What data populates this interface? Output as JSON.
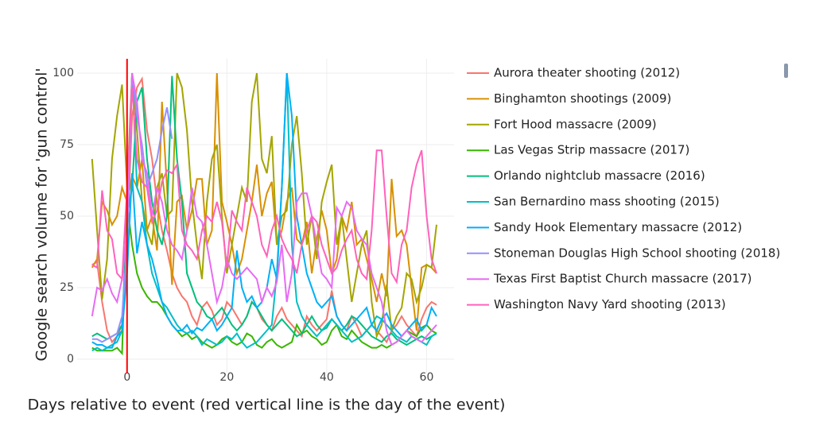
{
  "chart_data": {
    "type": "line",
    "xlabel": "Days relative to event (red vertical line is the day of the event)",
    "ylabel": "Google search volume for 'gun control'",
    "x": [
      -7,
      -6,
      -5,
      -4,
      -3,
      -2,
      -1,
      0,
      1,
      2,
      3,
      4,
      5,
      6,
      7,
      8,
      9,
      10,
      11,
      12,
      13,
      14,
      15,
      16,
      17,
      18,
      19,
      20,
      21,
      22,
      23,
      24,
      25,
      26,
      27,
      28,
      29,
      30,
      31,
      32,
      33,
      34,
      35,
      36,
      37,
      38,
      39,
      40,
      41,
      42,
      43,
      44,
      45,
      46,
      47,
      48,
      49,
      50,
      51,
      52,
      53,
      54,
      55,
      56,
      57,
      58,
      59,
      60,
      61,
      62
    ],
    "xlim": [
      -10,
      65.5
    ],
    "xticks": [
      0,
      20,
      40,
      60
    ],
    "ylim": [
      -5,
      105
    ],
    "yticks": [
      0,
      25,
      50,
      75,
      100
    ],
    "grid": true,
    "vline": {
      "x": 0,
      "color": "#ff0000"
    },
    "series": [
      {
        "name": "Aurora theater shooting (2012)",
        "color": "#f8766d",
        "values": [
          33,
          34,
          20,
          10,
          6,
          8,
          12,
          40,
          85,
          95,
          98,
          80,
          70,
          55,
          45,
          38,
          30,
          25,
          22,
          20,
          15,
          12,
          18,
          20,
          17,
          12,
          14,
          20,
          18,
          15,
          12,
          15,
          20,
          18,
          14,
          12,
          10,
          15,
          18,
          14,
          12,
          10,
          8,
          15,
          12,
          10,
          12,
          14,
          24,
          15,
          12,
          10,
          15,
          12,
          8,
          10,
          12,
          10,
          8,
          6,
          10,
          12,
          15,
          12,
          10,
          8,
          14,
          18,
          20,
          19
        ]
      },
      {
        "name": "Binghamton shootings (2009)",
        "color": "#d89000",
        "values": [
          32,
          35,
          55,
          52,
          47,
          50,
          60,
          55,
          64,
          60,
          70,
          45,
          50,
          38,
          90,
          60,
          26,
          55,
          57,
          45,
          52,
          63,
          63,
          40,
          45,
          100,
          55,
          48,
          40,
          30,
          35,
          45,
          55,
          68,
          50,
          58,
          62,
          40,
          45,
          55,
          60,
          42,
          40,
          48,
          30,
          42,
          52,
          45,
          30,
          35,
          50,
          45,
          55,
          40,
          42,
          35,
          28,
          20,
          30,
          22,
          63,
          43,
          45,
          40,
          25,
          10,
          32,
          33,
          32,
          30
        ]
      },
      {
        "name": "Fort Hood massacre (2009)",
        "color": "#a3a500",
        "values": [
          70,
          45,
          21,
          35,
          70,
          85,
          96,
          60,
          100,
          80,
          55,
          45,
          40,
          60,
          65,
          50,
          52,
          100,
          95,
          80,
          55,
          40,
          28,
          55,
          70,
          75,
          50,
          30,
          40,
          50,
          60,
          55,
          90,
          100,
          70,
          65,
          78,
          40,
          50,
          52,
          75,
          85,
          65,
          40,
          50,
          35,
          55,
          62,
          68,
          40,
          50,
          35,
          20,
          30,
          40,
          45,
          20,
          8,
          12,
          26,
          10,
          15,
          18,
          30,
          28,
          20,
          25,
          33,
          32,
          47
        ]
      },
      {
        "name": "Las Vegas Strip massacre (2017)",
        "color": "#39b600",
        "values": [
          4,
          3,
          3,
          3,
          3,
          4,
          2,
          55,
          40,
          30,
          25,
          22,
          20,
          20,
          18,
          15,
          12,
          10,
          8,
          9,
          7,
          8,
          6,
          5,
          4,
          5,
          7,
          8,
          6,
          5,
          6,
          9,
          8,
          5,
          4,
          6,
          7,
          5,
          4,
          5,
          6,
          12,
          9,
          10,
          8,
          7,
          5,
          6,
          10,
          12,
          8,
          7,
          10,
          8,
          6,
          5,
          4,
          4,
          5,
          4,
          5,
          6,
          8,
          10,
          9,
          8,
          11,
          12,
          10,
          9
        ]
      },
      {
        "name": "Orlando nightclub massacre (2016)",
        "color": "#00bf7d",
        "values": [
          8,
          9,
          8,
          7,
          8,
          9,
          12,
          50,
          60,
          90,
          95,
          70,
          55,
          45,
          40,
          50,
          99,
          70,
          55,
          30,
          25,
          20,
          18,
          15,
          14,
          16,
          18,
          15,
          12,
          10,
          12,
          15,
          20,
          18,
          15,
          12,
          10,
          12,
          14,
          12,
          10,
          8,
          9,
          12,
          15,
          12,
          10,
          11,
          14,
          12,
          10,
          12,
          15,
          14,
          12,
          10,
          8,
          7,
          6,
          8,
          9,
          7,
          6,
          5,
          6,
          7,
          8,
          7,
          8,
          9
        ]
      },
      {
        "name": "San Bernardino mass shooting (2015)",
        "color": "#00bfc4",
        "values": [
          3,
          4,
          3,
          4,
          5,
          6,
          10,
          40,
          100,
          60,
          55,
          40,
          30,
          25,
          20,
          18,
          15,
          12,
          10,
          9,
          10,
          8,
          5,
          7,
          6,
          5,
          6,
          8,
          7,
          9,
          6,
          4,
          5,
          6,
          8,
          10,
          12,
          30,
          60,
          100,
          40,
          20,
          15,
          12,
          10,
          8,
          10,
          12,
          14,
          12,
          10,
          8,
          6,
          7,
          8,
          10,
          12,
          15,
          14,
          12,
          10,
          8,
          7,
          6,
          8,
          7,
          6,
          5,
          8,
          9
        ]
      },
      {
        "name": "Sandy Hook Elementary massacre (2012)",
        "color": "#00b0f6",
        "values": [
          6,
          5,
          5,
          4,
          4,
          8,
          10,
          30,
          65,
          37,
          48,
          40,
          35,
          28,
          20,
          15,
          12,
          10,
          10,
          12,
          9,
          11,
          10,
          12,
          14,
          10,
          12,
          15,
          18,
          38,
          25,
          20,
          22,
          18,
          20,
          25,
          35,
          28,
          60,
          100,
          85,
          50,
          40,
          30,
          25,
          20,
          18,
          20,
          22,
          15,
          12,
          10,
          12,
          14,
          16,
          18,
          12,
          10,
          14,
          16,
          12,
          10,
          8,
          10,
          12,
          14,
          10,
          12,
          18,
          15
        ]
      },
      {
        "name": "Stoneman Douglas High School shooting (2018)",
        "color": "#9590ff",
        "values": [
          7,
          7,
          6,
          7,
          8,
          9,
          15,
          40,
          100,
          85,
          75,
          60,
          65,
          70,
          80,
          88,
          77,
          null,
          null,
          null,
          null,
          null,
          null,
          null,
          null,
          null,
          null,
          null,
          null,
          null,
          null,
          null,
          null,
          null,
          null,
          null,
          null,
          null,
          null,
          null,
          null,
          null,
          null,
          null,
          null,
          null,
          null,
          null,
          null,
          null,
          null,
          null,
          null,
          null,
          null,
          null,
          null,
          null,
          null,
          null,
          null,
          null,
          null,
          null,
          null,
          null,
          null,
          null,
          null,
          null
        ]
      },
      {
        "name": "Texas First Baptist Church massacre (2017)",
        "color": "#e76bf3",
        "values": [
          15,
          25,
          24,
          28,
          23,
          20,
          28,
          45,
          100,
          90,
          70,
          65,
          50,
          60,
          55,
          45,
          40,
          38,
          35,
          45,
          60,
          50,
          48,
          40,
          30,
          20,
          25,
          35,
          30,
          28,
          30,
          32,
          30,
          28,
          20,
          25,
          22,
          27,
          40,
          20,
          30,
          55,
          58,
          58,
          50,
          40,
          30,
          28,
          25,
          53,
          50,
          55,
          53,
          45,
          42,
          40,
          30,
          25,
          20,
          10,
          5,
          6,
          8,
          10,
          8,
          7,
          6,
          8,
          10,
          12
        ]
      },
      {
        "name": "Washington Navy Yard shooting (2013)",
        "color": "#ff62bc",
        "values": [
          33,
          32,
          59,
          45,
          42,
          30,
          28,
          60,
          95,
          70,
          62,
          60,
          48,
          52,
          62,
          66,
          65,
          68,
          45,
          40,
          38,
          35,
          45,
          50,
          48,
          55,
          48,
          32,
          52,
          48,
          45,
          60,
          55,
          50,
          40,
          36,
          45,
          50,
          42,
          38,
          35,
          30,
          40,
          45,
          50,
          48,
          40,
          35,
          30,
          32,
          38,
          42,
          45,
          35,
          30,
          28,
          45,
          73,
          73,
          50,
          30,
          27,
          40,
          45,
          60,
          68,
          73,
          50,
          35,
          30
        ]
      }
    ]
  }
}
